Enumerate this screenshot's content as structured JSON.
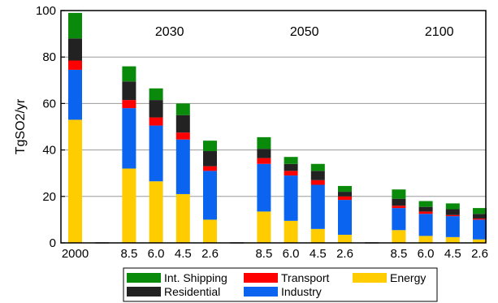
{
  "chart_data": {
    "type": "bar",
    "stacked": true,
    "ylabel": "TgSO2/yr",
    "ylim": [
      0,
      100
    ],
    "y_ticks": [
      0,
      20,
      40,
      60,
      80,
      100
    ],
    "grid": "horizontal",
    "period_labels": [
      "2030",
      "2050",
      "2100"
    ],
    "categories": [
      "2000",
      "",
      "8.5",
      "6.0",
      "4.5",
      "2.6",
      "",
      "8.5",
      "6.0",
      "4.5",
      "2.6",
      "",
      "8.5",
      "6.0",
      "4.5",
      "2.6"
    ],
    "category_period": [
      "2000",
      "",
      "2030",
      "2030",
      "2030",
      "2030",
      "",
      "2050",
      "2050",
      "2050",
      "2050",
      "",
      "2100",
      "2100",
      "2100",
      "2100"
    ],
    "legend": {
      "placement": "bottom",
      "entries": [
        "Int. Shipping",
        "Transport",
        "Energy",
        "Residential",
        "Industry"
      ]
    },
    "series": [
      {
        "name": "Energy",
        "color": "#FFCC00",
        "values": [
          53,
          0,
          32,
          26.5,
          21,
          10,
          0,
          13.5,
          9.5,
          6,
          3.5,
          0,
          5.5,
          3,
          2.5,
          1.5
        ]
      },
      {
        "name": "Industry",
        "color": "#0A64F0",
        "values": [
          21.5,
          0,
          26,
          24,
          23.5,
          21,
          0,
          20.5,
          19.5,
          19,
          15,
          0,
          9.5,
          9.5,
          9,
          8.5
        ]
      },
      {
        "name": "Transport",
        "color": "#FF0000",
        "values": [
          4,
          0,
          3.5,
          3.5,
          3,
          2,
          0,
          2.5,
          2,
          2,
          1.5,
          0,
          1,
          1,
          0.5,
          0.5
        ]
      },
      {
        "name": "Residential",
        "color": "#222222",
        "values": [
          9.5,
          0,
          8,
          7.5,
          7.5,
          6.5,
          0,
          4,
          3,
          4,
          2,
          0,
          3,
          2,
          2.5,
          2
        ]
      },
      {
        "name": "Int. Shipping",
        "color": "#0A8A0A",
        "values": [
          11,
          0,
          6.5,
          5,
          5,
          4.5,
          0,
          5,
          3,
          3,
          2.5,
          0,
          4,
          2.5,
          2.5,
          2.5
        ]
      }
    ]
  }
}
